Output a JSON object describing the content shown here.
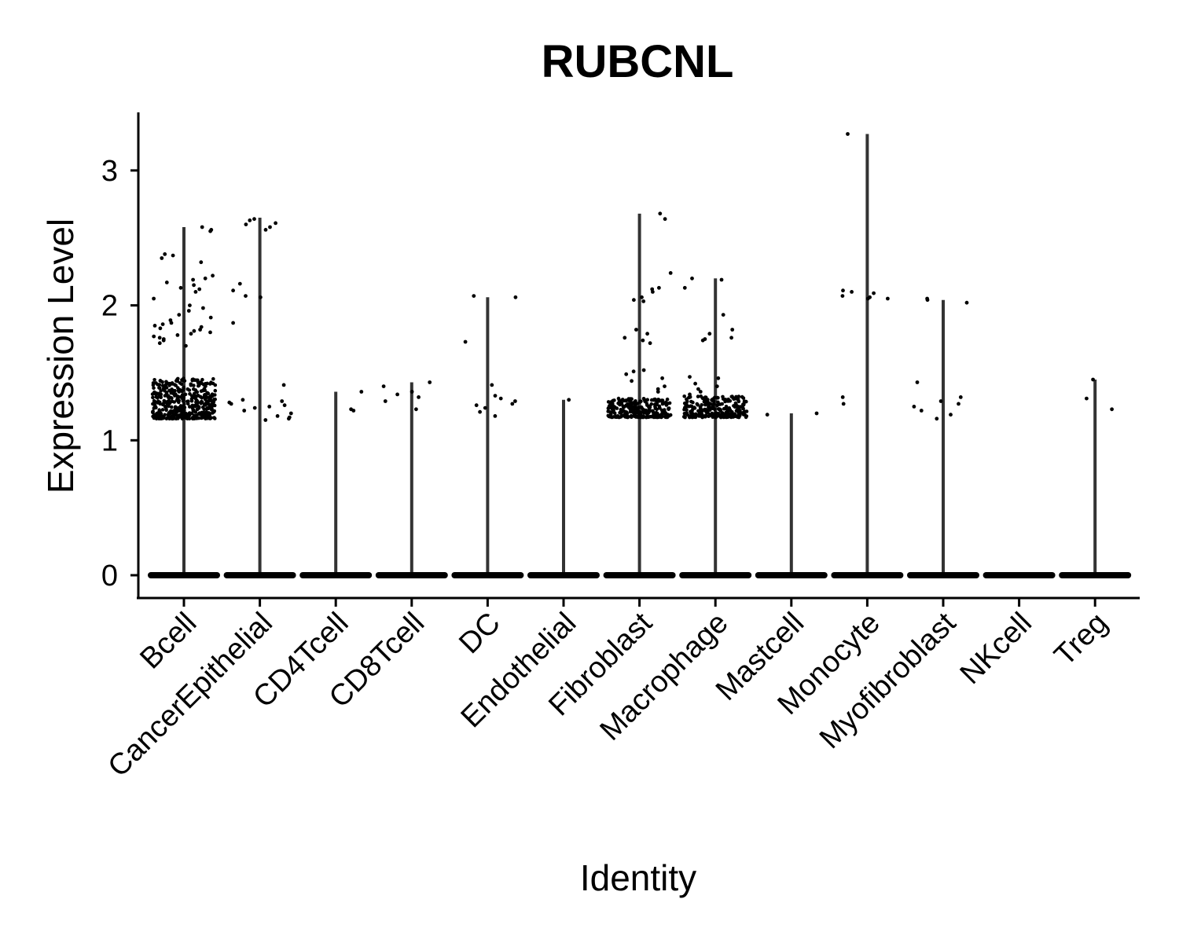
{
  "chart_data": {
    "type": "violin",
    "title": "RUBCNL",
    "xlabel": "Identity",
    "ylabel": "Expression Level",
    "ylim": [
      -0.16,
      3.45
    ],
    "yticks": [
      0,
      1,
      2,
      3
    ],
    "ytick_labels": [
      "0",
      "1",
      "2",
      "3"
    ],
    "grid": false,
    "legend": "none",
    "categories": [
      "Bcell",
      "CancerEpithelial",
      "CD4Tcell",
      "CD8Tcell",
      "DC",
      "Endothelial",
      "Fibroblast",
      "Macrophage",
      "Mastcell",
      "Monocyte",
      "Myofibroblast",
      "NKcell",
      "Treg"
    ],
    "max_values": [
      2.58,
      2.65,
      1.36,
      1.43,
      2.06,
      1.3,
      2.68,
      2.2,
      1.2,
      3.27,
      2.04,
      0,
      1.45
    ],
    "jitter_points": [
      {
        "category": "Bcell",
        "values": [
          2.56,
          2.58,
          2.55,
          2.37,
          2.38,
          2.35,
          2.32,
          2.22,
          2.2,
          2.19,
          2.17,
          2.15,
          2.13,
          2.12,
          2.1,
          2.05,
          2.0,
          1.98,
          1.96,
          1.93,
          1.91,
          1.89,
          1.87,
          1.86,
          1.85,
          1.84,
          1.83,
          1.82,
          1.81,
          1.8,
          1.79,
          1.78,
          1.77,
          1.76,
          1.75,
          1.74,
          1.72,
          1.7
        ]
      },
      {
        "category": "CancerEpithelial",
        "values": [
          2.64,
          2.63,
          2.61,
          2.6,
          2.58,
          2.56,
          2.16,
          2.11,
          2.07,
          2.06,
          1.87,
          1.41,
          1.3,
          1.29,
          1.28,
          1.27,
          1.26,
          1.25,
          1.24,
          1.22,
          1.2,
          1.18,
          1.17,
          1.16,
          1.15
        ]
      },
      {
        "category": "CD4Tcell",
        "values": [
          1.36,
          1.23,
          1.22
        ]
      },
      {
        "category": "CD8Tcell",
        "values": [
          1.43,
          1.4,
          1.36,
          1.34,
          1.32,
          1.29,
          1.23
        ]
      },
      {
        "category": "DC",
        "values": [
          2.07,
          2.06,
          1.73,
          1.41,
          1.33,
          1.31,
          1.29,
          1.27,
          1.26,
          1.24,
          1.21,
          1.18
        ]
      },
      {
        "category": "Endothelial",
        "values": [
          1.3
        ]
      },
      {
        "category": "Fibroblast",
        "values": [
          2.68,
          2.64,
          2.24,
          2.13,
          2.12,
          2.1,
          2.06,
          2.04,
          2.03,
          1.82,
          1.79,
          1.76,
          1.74,
          1.72,
          1.52,
          1.51,
          1.49,
          1.46,
          1.44,
          1.4,
          1.38,
          1.36
        ]
      },
      {
        "category": "Macrophage",
        "values": [
          2.2,
          2.19,
          2.13,
          1.93,
          1.82,
          1.79,
          1.76,
          1.75,
          1.74,
          1.47,
          1.46,
          1.42,
          1.4,
          1.38,
          1.36,
          1.34
        ]
      },
      {
        "category": "Mastcell",
        "values": [
          1.2,
          1.19
        ]
      },
      {
        "category": "Monocyte",
        "values": [
          3.27,
          2.11,
          2.1,
          2.09,
          2.07,
          2.06,
          2.05,
          2.05,
          1.32,
          1.27
        ]
      },
      {
        "category": "Myofibroblast",
        "values": [
          2.05,
          2.04,
          2.02,
          1.43,
          1.32,
          1.29,
          1.27,
          1.25,
          1.22,
          1.19,
          1.16
        ]
      },
      {
        "category": "NKcell",
        "values": []
      },
      {
        "category": "Treg",
        "values": [
          1.45,
          1.31,
          1.23
        ]
      }
    ],
    "dense_clusters": [
      {
        "category": "Bcell",
        "range": [
          1.16,
          1.46
        ]
      },
      {
        "category": "Fibroblast",
        "range": [
          1.17,
          1.31
        ]
      },
      {
        "category": "Macrophage",
        "range": [
          1.17,
          1.33
        ]
      }
    ]
  }
}
